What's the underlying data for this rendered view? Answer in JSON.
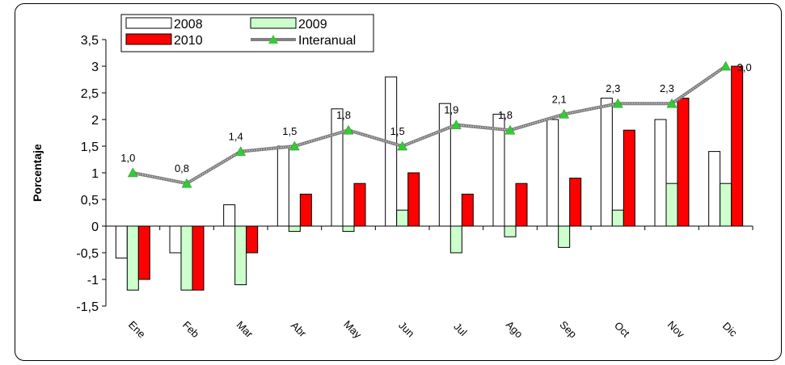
{
  "chart_data": {
    "type": "bar",
    "title": "",
    "xlabel": "",
    "ylabel": "Porcentaje",
    "ylim": [
      -1.5,
      3.5
    ],
    "ytick_step": 0.5,
    "yticks": [
      "-1,5",
      "-1",
      "-0,5",
      "0",
      "0,5",
      "1",
      "1,5",
      "2",
      "2,5",
      "3",
      "3,5"
    ],
    "categories": [
      "Ene",
      "Feb",
      "Mar",
      "Abr",
      "May",
      "Jun",
      "Jul",
      "Ago",
      "Sep",
      "Oct",
      "Nov",
      "Dic"
    ],
    "series": [
      {
        "name": "2008",
        "kind": "bar",
        "color": "#ffffff",
        "values": [
          -0.6,
          -0.5,
          0.4,
          1.5,
          2.2,
          2.8,
          2.3,
          2.1,
          2.0,
          2.4,
          2.0,
          1.4
        ]
      },
      {
        "name": "2009",
        "kind": "bar",
        "color": "#ccffcc",
        "values": [
          -1.2,
          -1.2,
          -1.1,
          -0.1,
          -0.1,
          0.3,
          -0.5,
          -0.2,
          -0.4,
          0.3,
          0.8,
          0.8
        ]
      },
      {
        "name": "2010",
        "kind": "bar",
        "color": "#ff0000",
        "values": [
          -1.0,
          -1.2,
          -0.5,
          0.6,
          0.8,
          1.0,
          0.6,
          0.8,
          0.9,
          1.8,
          2.4,
          3.0
        ]
      },
      {
        "name": "Interanual",
        "kind": "line",
        "color": "#808080",
        "marker_color": "#33cc33",
        "values": [
          1.0,
          0.8,
          1.4,
          1.5,
          1.8,
          1.5,
          1.9,
          1.8,
          2.1,
          2.3,
          2.3,
          3.0
        ],
        "labels": [
          "1,0",
          "0,8",
          "1,4",
          "1,5",
          "1,8",
          "1,5",
          "1,9",
          "1,8",
          "2,1",
          "2,3",
          "2,3",
          "3,0"
        ]
      }
    ],
    "legend_position": "top-left",
    "grid": false
  }
}
